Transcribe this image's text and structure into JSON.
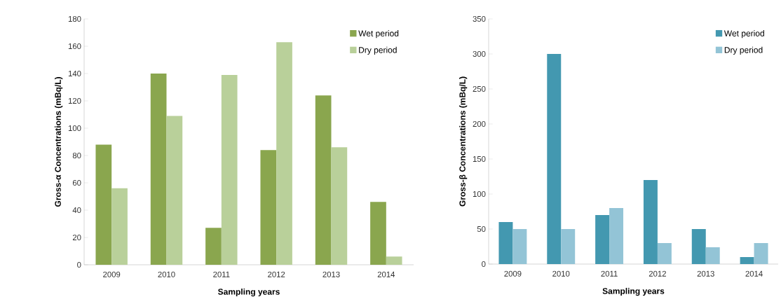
{
  "chart_data": [
    {
      "type": "bar",
      "categories": [
        "2009",
        "2010",
        "2011",
        "2012",
        "2013",
        "2014"
      ],
      "xlabel": "Sampling years",
      "ylabel": "Gross-α Concentrations (mBq/L)",
      "ylim": [
        0,
        180
      ],
      "yticks": [
        0,
        20,
        40,
        60,
        80,
        100,
        120,
        140,
        160,
        180
      ],
      "legend": "top right",
      "series": [
        {
          "name": "Wet period",
          "color": "#8aa64e",
          "values": [
            88,
            140,
            27,
            84,
            124,
            46
          ]
        },
        {
          "name": "Dry period",
          "color": "#b9d09a",
          "values": [
            56,
            109,
            139,
            163,
            86,
            6
          ]
        }
      ]
    },
    {
      "type": "bar",
      "categories": [
        "2009",
        "2010",
        "2011",
        "2012",
        "2013",
        "2014"
      ],
      "xlabel": "Sampling years",
      "ylabel": "Gross-β Concentrations (mBq/L)",
      "ylim": [
        0,
        350
      ],
      "yticks": [
        0,
        50,
        100,
        150,
        200,
        250,
        300,
        350
      ],
      "legend": "top right",
      "series": [
        {
          "name": "Wet period",
          "color": "#4398b0",
          "values": [
            60,
            300,
            70,
            120,
            50,
            10
          ]
        },
        {
          "name": "Dry period",
          "color": "#93c4d6",
          "values": [
            50,
            50,
            80,
            30,
            24,
            30
          ]
        }
      ]
    }
  ]
}
